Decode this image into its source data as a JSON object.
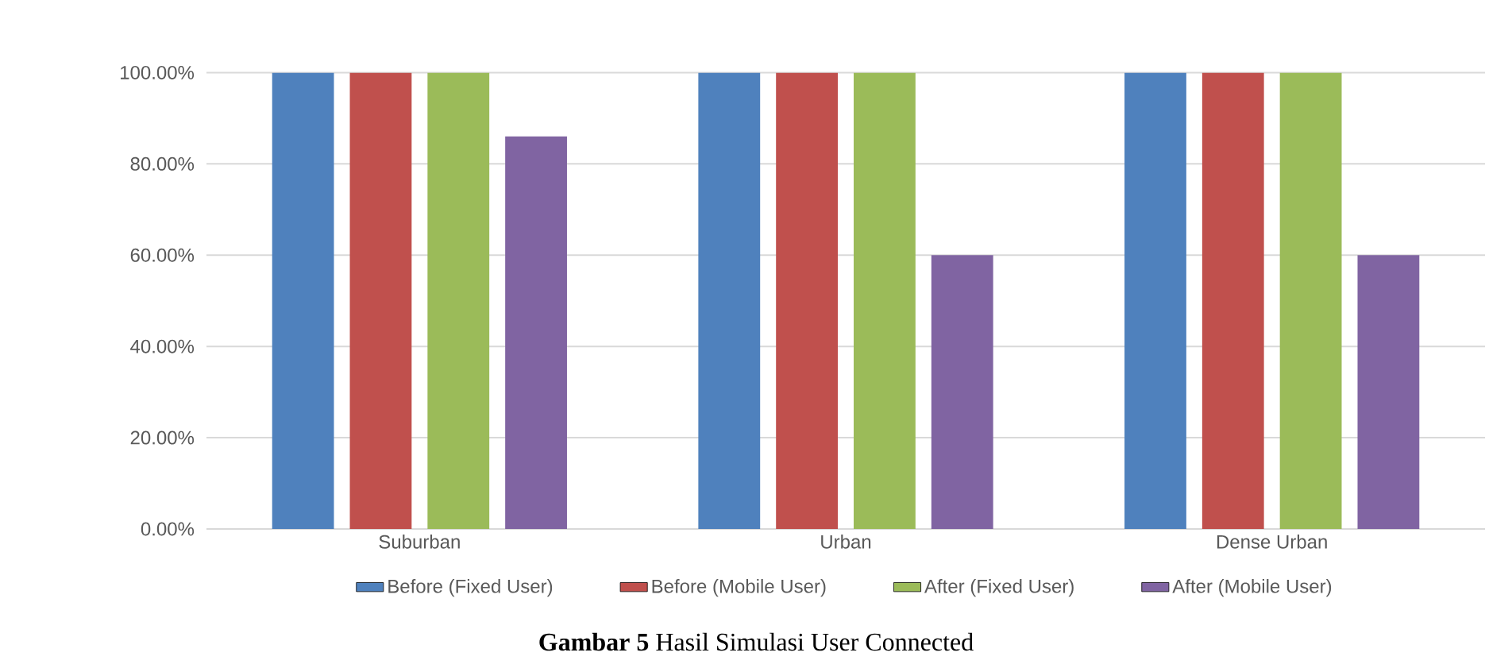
{
  "chart_data": {
    "type": "bar",
    "title": "**Gambar 5** Hasil Simulasi User Connected",
    "categories": [
      "Suburban",
      "Urban",
      "Dense Urban"
    ],
    "series": [
      {
        "name": "Before (Fixed User)",
        "color": "#4f81bd",
        "values": [
          100,
          100,
          100
        ]
      },
      {
        "name": "Before (Mobile User)",
        "color": "#c0504d",
        "values": [
          100,
          100,
          100
        ]
      },
      {
        "name": "After (Fixed User)",
        "color": "#9bbb59",
        "values": [
          100,
          100,
          100
        ]
      },
      {
        "name": "After (Mobile User)",
        "color": "#8064a2",
        "values": [
          86,
          60,
          60
        ]
      }
    ],
    "ylim": [
      0,
      100
    ],
    "yticks": [
      {
        "value": 0,
        "label": "0.00%"
      },
      {
        "value": 20,
        "label": "20.00%"
      },
      {
        "value": 40,
        "label": "40.00%"
      },
      {
        "value": 60,
        "label": "60.00%"
      },
      {
        "value": 80,
        "label": "80.00%"
      },
      {
        "value": 100,
        "label": "100.00%"
      }
    ],
    "grid": "y",
    "legend": "bottom"
  }
}
